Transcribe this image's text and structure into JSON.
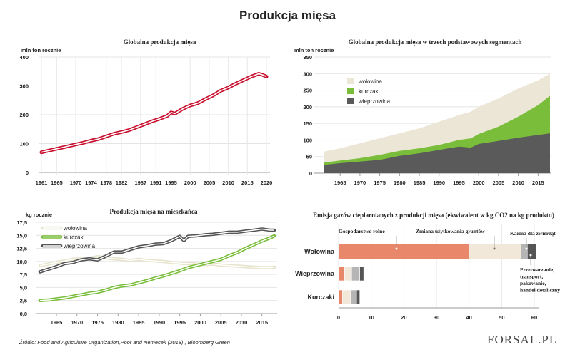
{
  "title": "Produkcja mięsa",
  "source": "Źródło:  Food and Agriculture Organization,Poor and Nemecek (2018) , Bloomberg Green",
  "logo": "FORSAL.PL",
  "colors": {
    "red": "#c8102e",
    "beige": "#ebe6d6",
    "green": "#79bd3a",
    "dark": "#5a5a5a",
    "salmon": "#e8876a"
  },
  "chart_data": [
    {
      "type": "line",
      "title": "Globalna produkcja mięsa",
      "ylabel": "mln ton rocznie",
      "ylim": [
        0,
        400
      ],
      "yticks": [
        0,
        100,
        200,
        300,
        400
      ],
      "xticks": [
        1961,
        1965,
        1970,
        1974,
        1978,
        1982,
        1987,
        1991,
        1995,
        2000,
        2005,
        2010,
        2015,
        2020
      ],
      "x": [
        1961,
        1963,
        1965,
        1967,
        1970,
        1972,
        1974,
        1976,
        1978,
        1980,
        1982,
        1984,
        1986,
        1988,
        1990,
        1992,
        1994,
        1995,
        1996,
        1998,
        2000,
        2002,
        2004,
        2006,
        2008,
        2010,
        2012,
        2014,
        2016,
        2017,
        2018,
        2019,
        2020
      ],
      "values": [
        70,
        76,
        82,
        88,
        97,
        103,
        110,
        116,
        125,
        134,
        140,
        147,
        157,
        167,
        177,
        186,
        196,
        208,
        204,
        220,
        232,
        240,
        254,
        267,
        283,
        294,
        308,
        320,
        332,
        337,
        342,
        338,
        332
      ]
    },
    {
      "type": "area",
      "title": "Globalna produkcja mięsa w trzech podstawowych segmentach",
      "ylabel": "mln ton rocznie",
      "ylim": [
        0,
        350
      ],
      "yticks": [
        0,
        50,
        100,
        150,
        200,
        250,
        300,
        350
      ],
      "xticks": [
        1965,
        1970,
        1975,
        1980,
        1985,
        1990,
        1995,
        2000,
        2005,
        2010,
        2015
      ],
      "x": [
        1961,
        1965,
        1970,
        1975,
        1980,
        1985,
        1990,
        1995,
        1998,
        2000,
        2005,
        2010,
        2015,
        2018
      ],
      "series": [
        {
          "name": "wieprzowina",
          "values": [
            25,
            30,
            35,
            40,
            52,
            60,
            70,
            80,
            77,
            88,
            97,
            107,
            115,
            120
          ]
        },
        {
          "name": "kurczaki",
          "values": [
            32,
            38,
            45,
            55,
            67,
            75,
            85,
            100,
            105,
            118,
            140,
            170,
            205,
            233
          ]
        },
        {
          "name": "wołowina",
          "values": [
            65,
            75,
            90,
            105,
            120,
            135,
            155,
            175,
            185,
            200,
            225,
            255,
            280,
            300
          ]
        }
      ]
    },
    {
      "type": "line",
      "title": "Produkcja mięsa na mieszkańca",
      "ylabel": "kg rocznie",
      "ylim": [
        0,
        17.5
      ],
      "yticks": [
        "0,0",
        "2,5",
        "5,0",
        "7,5",
        "10,0",
        "12,5",
        "15,0",
        "17,5"
      ],
      "ytick_values": [
        0,
        2.5,
        5,
        7.5,
        10,
        12.5,
        15,
        17.5
      ],
      "xticks": [
        1965,
        1970,
        1975,
        1980,
        1985,
        1990,
        1995,
        2000,
        2005,
        2010,
        2015
      ],
      "x": [
        1961,
        1963,
        1965,
        1967,
        1969,
        1971,
        1973,
        1975,
        1977,
        1979,
        1981,
        1983,
        1985,
        1987,
        1989,
        1991,
        1993,
        1995,
        1996,
        1997,
        1999,
        2001,
        2003,
        2005,
        2007,
        2009,
        2011,
        2013,
        2015,
        2017,
        2018
      ],
      "series": [
        {
          "name": "wołowina",
          "values": [
            9.2,
            9.5,
            9.8,
            10.1,
            10.4,
            10.5,
            10.6,
            10.9,
            10.7,
            10.5,
            10.4,
            10.2,
            10.4,
            10.2,
            10.1,
            10.0,
            9.8,
            9.7,
            9.6,
            9.6,
            9.5,
            9.4,
            9.5,
            9.3,
            9.2,
            9.1,
            9.0,
            8.9,
            8.8,
            8.8,
            8.9
          ]
        },
        {
          "name": "kurczaki",
          "values": [
            2.5,
            2.6,
            2.8,
            3.0,
            3.3,
            3.6,
            3.9,
            4.1,
            4.5,
            5.0,
            5.3,
            5.5,
            5.9,
            6.3,
            6.8,
            7.2,
            7.7,
            8.2,
            8.5,
            8.8,
            9.2,
            9.6,
            10.0,
            10.4,
            11.1,
            11.7,
            12.5,
            13.2,
            13.9,
            14.5,
            14.9
          ]
        },
        {
          "name": "wieprzowina",
          "values": [
            8.0,
            8.5,
            9.0,
            9.6,
            9.8,
            10.3,
            10.5,
            10.3,
            11.0,
            11.8,
            11.8,
            12.3,
            12.8,
            13.0,
            13.3,
            13.4,
            14.0,
            14.8,
            14.0,
            14.8,
            14.9,
            15.1,
            15.2,
            15.4,
            15.6,
            15.6,
            15.8,
            16.0,
            16.2,
            16.0,
            16.0
          ]
        }
      ]
    },
    {
      "type": "bar",
      "title": "Emisja gazów cieplarnianych z produkcji mięsa (ekwiwalent w kg CO2 na kg produktu)",
      "categories": [
        "Wołowina",
        "Wieprzowina",
        "Kurczaki"
      ],
      "xlim": [
        0,
        60
      ],
      "xticks": [
        0,
        10,
        20,
        30,
        40,
        50,
        60
      ],
      "segments": [
        "Gospodarstwo rolne",
        "Zmiana użytkowania gruntów",
        "Karma dla zwierząt",
        "Przetwarzanie, transport, pakowanie, handel detaliczny"
      ],
      "values": [
        [
          40,
          16,
          2,
          2.5
        ],
        [
          1.8,
          2.2,
          2.5,
          1.2
        ],
        [
          1.2,
          2.5,
          1.8,
          1.0
        ]
      ],
      "annotations": {
        "farm": "Gospodarstwo rolne",
        "land": "Zmiana użytkowania gruntów",
        "feed": "Karma dla zwierząt",
        "proc": [
          "Przetwarzanie,",
          "transport,",
          "pakowanie,",
          "handel detaliczny"
        ]
      }
    }
  ]
}
